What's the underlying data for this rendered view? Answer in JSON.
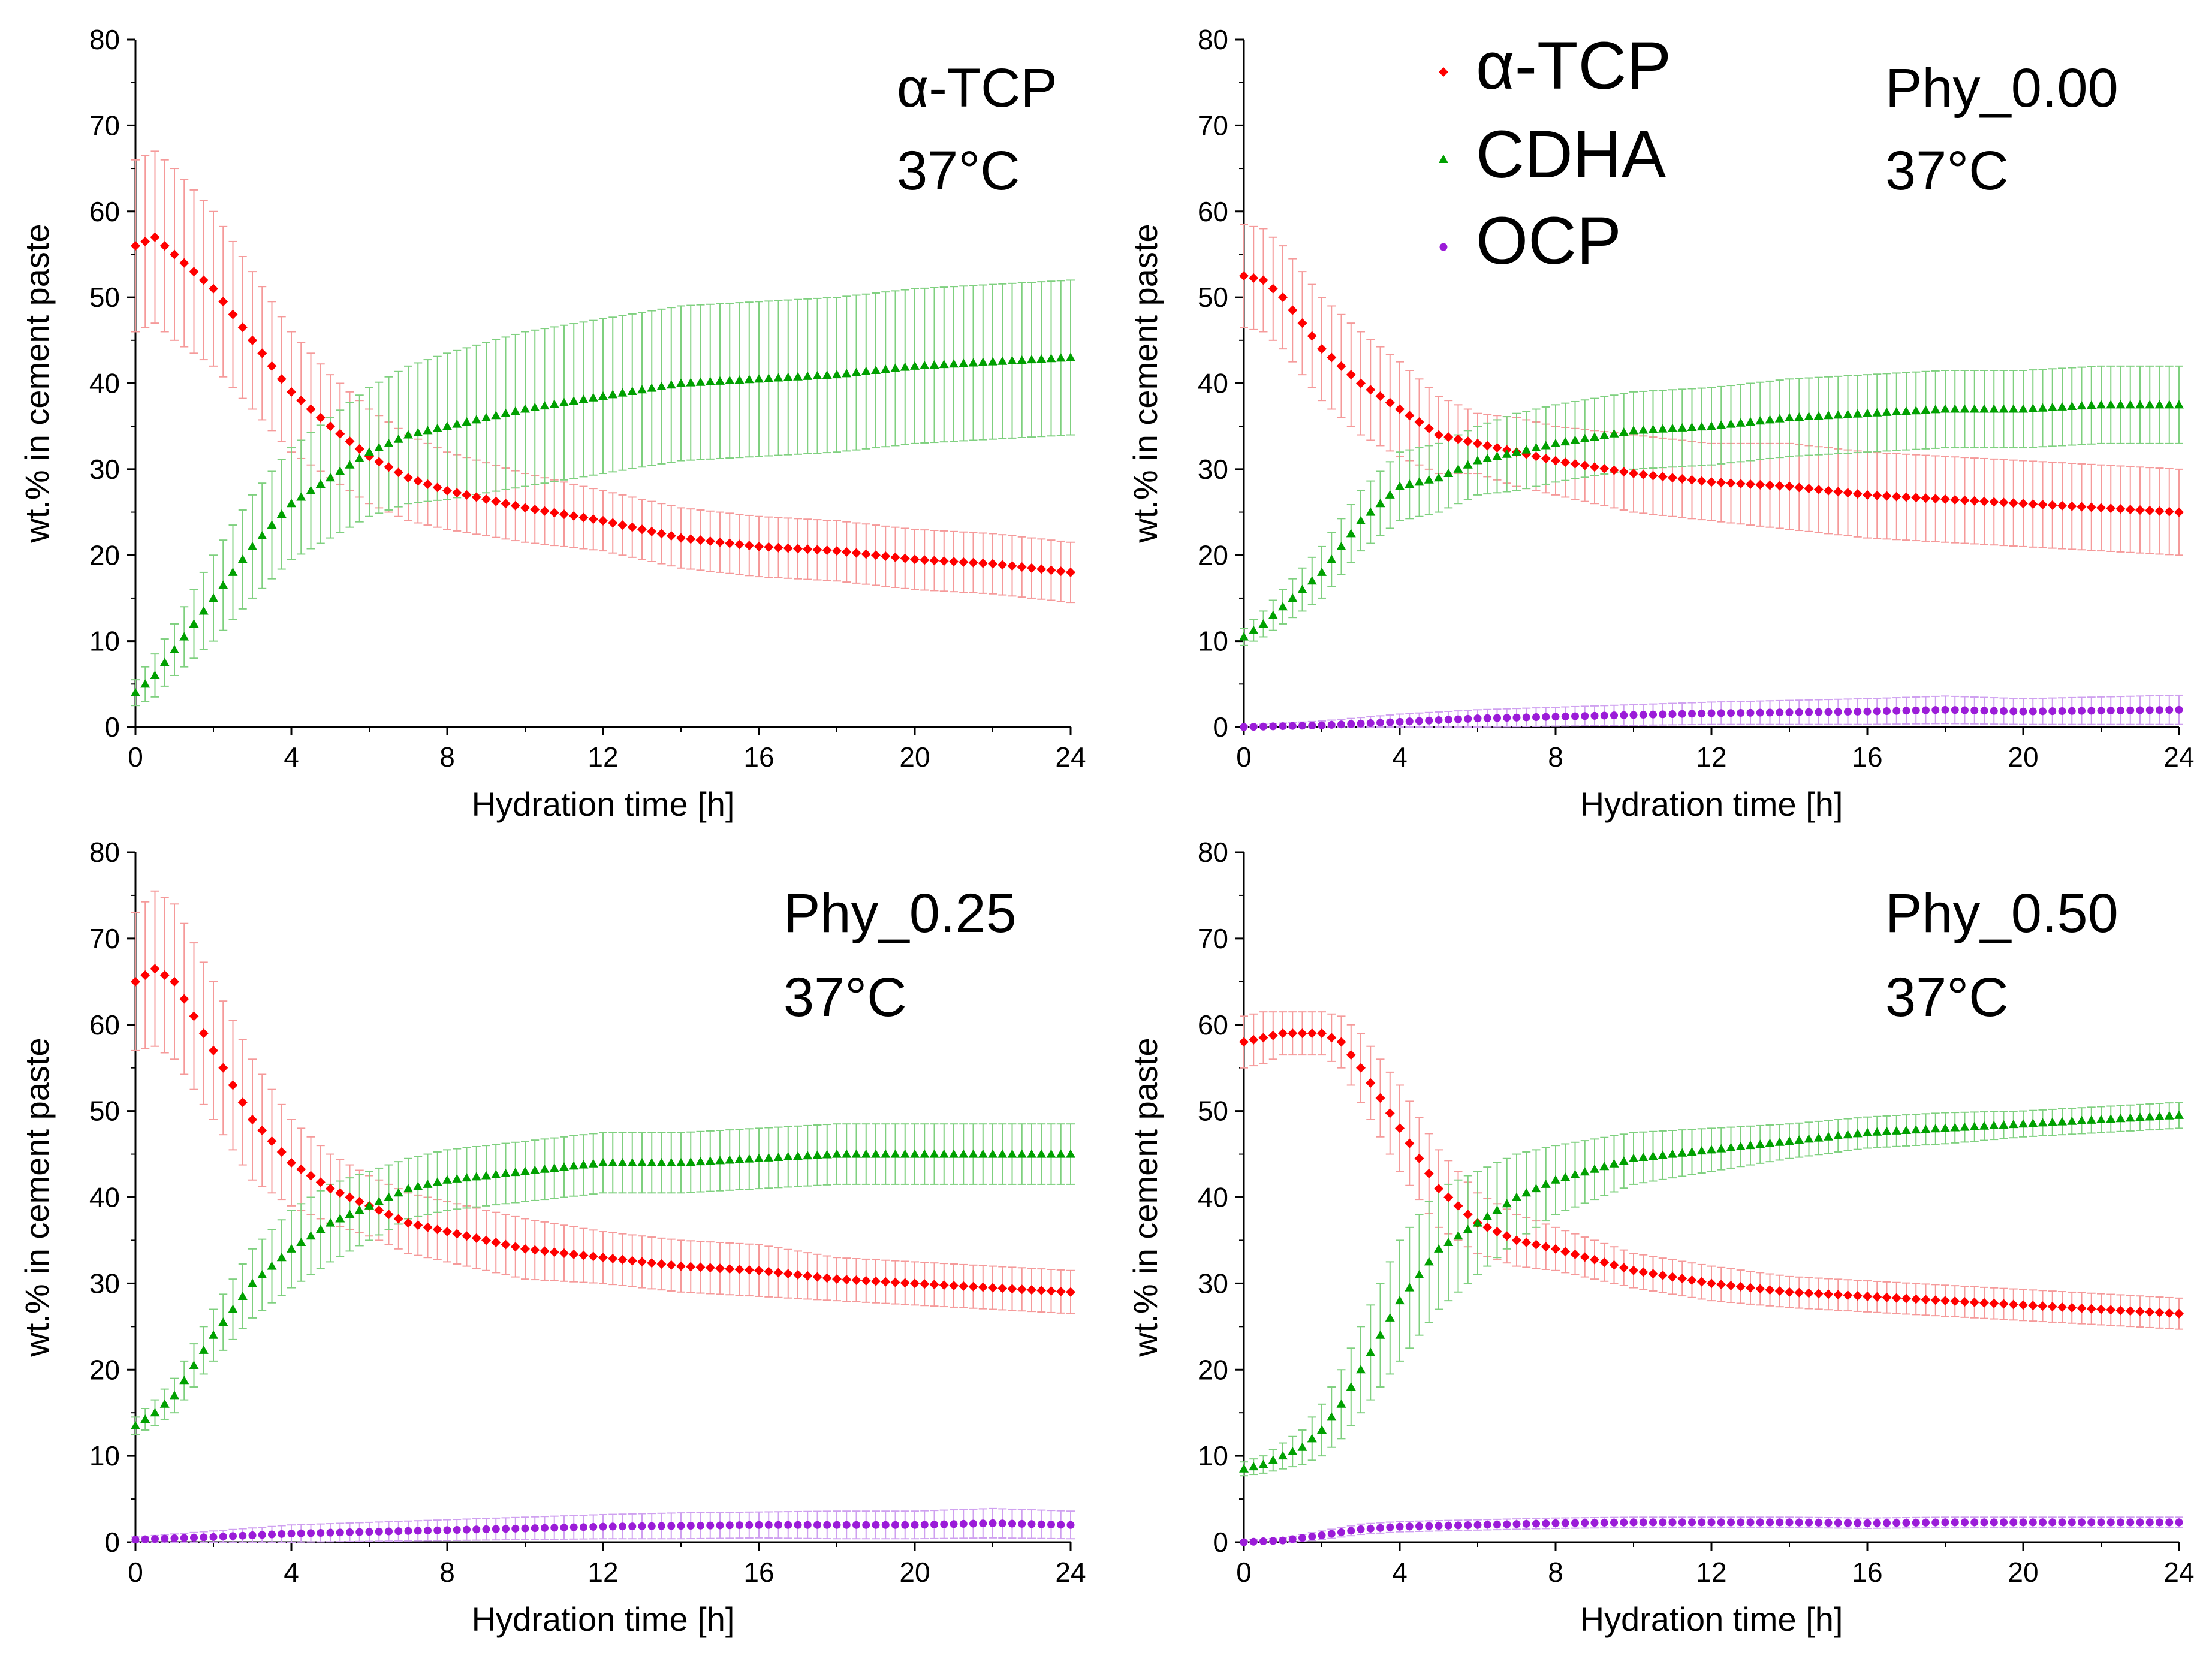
{
  "legend": [
    {
      "name": "α-TCP",
      "marker": "diamond",
      "color": "#ff0000"
    },
    {
      "name": "CDHA",
      "marker": "triangle",
      "color": "#00a000"
    },
    {
      "name": "OCP",
      "marker": "circle",
      "color": "#9b1cd8"
    }
  ],
  "colors": {
    "atcp": "#ff0000",
    "atcp_err": "#f59a9a",
    "cdha": "#00a000",
    "cdha_err": "#7fd07f",
    "ocp": "#9b1cd8",
    "ocp_err": "#cfa0f0"
  },
  "chart_data": [
    {
      "type": "scatter",
      "title": "α-TCP",
      "subtitle": "37°C",
      "xlabel": "Hydration time [h]",
      "ylabel": "wt.% in cement paste",
      "xlim": [
        0,
        24
      ],
      "ylim": [
        0,
        80
      ],
      "xticks": [
        0,
        4,
        8,
        12,
        16,
        20,
        24
      ],
      "yticks": [
        0,
        10,
        20,
        30,
        40,
        50,
        60,
        70,
        80
      ],
      "series": [
        {
          "name": "α-TCP",
          "x": [
            0,
            0.5,
            1,
            2,
            3,
            4,
            5,
            6,
            7,
            8,
            10,
            12,
            14,
            16,
            18,
            20,
            22,
            24
          ],
          "values": [
            56,
            57,
            55,
            51,
            45,
            39,
            35,
            31.5,
            29,
            27.5,
            25.5,
            24,
            22,
            21,
            20.5,
            19.5,
            19,
            18
          ],
          "error": [
            10,
            10,
            10,
            9,
            8,
            7,
            6,
            5.5,
            5,
            4.5,
            4,
            3.5,
            3.5,
            3.5,
            3.5,
            3.5,
            3.5,
            3.5
          ]
        },
        {
          "name": "CDHA",
          "x": [
            0,
            0.5,
            1,
            2,
            3,
            4,
            5,
            6,
            7,
            8,
            10,
            12,
            14,
            16,
            18,
            20,
            22,
            24
          ],
          "values": [
            4,
            6,
            9,
            15,
            21,
            26,
            29,
            32,
            34,
            35,
            37,
            38.5,
            40,
            40.5,
            41,
            42,
            42.5,
            43
          ],
          "error": [
            1.5,
            2.5,
            3,
            5,
            6,
            6.5,
            7,
            7.5,
            8,
            8.5,
            9,
            9,
            9,
            9,
            9,
            9,
            9,
            9
          ]
        }
      ]
    },
    {
      "type": "scatter",
      "title": "Phy_0.00",
      "subtitle": "37°C",
      "xlabel": "Hydration time [h]",
      "ylabel": "wt.% in cement paste",
      "xlim": [
        0,
        24
      ],
      "ylim": [
        0,
        80
      ],
      "xticks": [
        0,
        4,
        8,
        12,
        16,
        20,
        24
      ],
      "yticks": [
        0,
        10,
        20,
        30,
        40,
        50,
        60,
        70,
        80
      ],
      "series": [
        {
          "name": "α-TCP",
          "x": [
            0,
            0.5,
            1,
            2,
            3,
            4,
            5,
            6,
            7,
            8,
            10,
            12,
            14,
            16,
            18,
            20,
            22,
            24
          ],
          "values": [
            52.5,
            52,
            50,
            44,
            40,
            37,
            34,
            33,
            32,
            31,
            29.5,
            28.5,
            28,
            27,
            26.5,
            26,
            25.5,
            25
          ],
          "error": [
            6,
            6,
            6,
            6,
            6,
            5.5,
            4.5,
            3.5,
            4,
            4,
            4.5,
            4.5,
            5,
            5,
            5,
            5,
            5,
            5
          ]
        },
        {
          "name": "CDHA",
          "x": [
            0,
            0.5,
            1,
            2,
            3,
            4,
            5,
            6,
            7,
            8,
            10,
            12,
            14,
            16,
            18,
            20,
            22,
            24
          ],
          "values": [
            10.5,
            12,
            14,
            18,
            24,
            28,
            29,
            31,
            32,
            33,
            34.5,
            35,
            36,
            36.5,
            37,
            37,
            37.5,
            37.5
          ],
          "error": [
            1,
            1.5,
            2,
            3,
            3.5,
            4,
            4,
            4,
            4.5,
            4.5,
            4.5,
            4.5,
            4.5,
            4.5,
            4.5,
            4.5,
            4.5,
            4.5
          ]
        },
        {
          "name": "OCP",
          "x": [
            0,
            2,
            4,
            6,
            8,
            10,
            12,
            14,
            16,
            18,
            20,
            22,
            24
          ],
          "values": [
            0,
            0.2,
            0.6,
            1,
            1.2,
            1.4,
            1.6,
            1.7,
            1.8,
            2,
            1.8,
            1.9,
            2
          ],
          "error": [
            0.2,
            0.5,
            0.9,
            1,
            1.1,
            1.2,
            1.3,
            1.4,
            1.5,
            1.6,
            1.5,
            1.6,
            1.7
          ]
        }
      ]
    },
    {
      "type": "scatter",
      "title": "Phy_0.25",
      "subtitle": "37°C",
      "xlabel": "Hydration time [h]",
      "ylabel": "wt.% in cement paste",
      "xlim": [
        0,
        24
      ],
      "ylim": [
        0,
        80
      ],
      "xticks": [
        0,
        4,
        8,
        12,
        16,
        20,
        24
      ],
      "yticks": [
        0,
        10,
        20,
        30,
        40,
        50,
        60,
        70,
        80
      ],
      "series": [
        {
          "name": "α-TCP",
          "x": [
            0,
            0.5,
            1,
            2,
            3,
            4,
            5,
            6,
            7,
            8,
            10,
            12,
            14,
            16,
            18,
            20,
            22,
            24
          ],
          "values": [
            65,
            66.5,
            65,
            57,
            49,
            44,
            41,
            39,
            37,
            36,
            34,
            33,
            32,
            31.5,
            30.5,
            30,
            29.5,
            29
          ],
          "error": [
            8,
            9,
            9,
            8,
            7,
            5,
            4,
            3.5,
            3.5,
            3.5,
            3.5,
            3,
            3,
            3,
            2.5,
            2.5,
            2.5,
            2.5
          ]
        },
        {
          "name": "CDHA",
          "x": [
            0,
            0.5,
            1,
            2,
            3,
            4,
            5,
            6,
            7,
            8,
            10,
            12,
            14,
            16,
            18,
            20,
            22,
            24
          ],
          "values": [
            13.5,
            15,
            17,
            24,
            30,
            34,
            37,
            39,
            41,
            42,
            43,
            44,
            44,
            44.5,
            45,
            45,
            45,
            45
          ],
          "error": [
            1,
            1.5,
            2,
            3,
            4,
            4.5,
            4.5,
            4,
            3.5,
            3.5,
            3.5,
            3.5,
            3.5,
            3.5,
            3.5,
            3.5,
            3.5,
            3.5
          ]
        },
        {
          "name": "OCP",
          "x": [
            0,
            2,
            4,
            6,
            8,
            10,
            12,
            14,
            16,
            18,
            20,
            22,
            24
          ],
          "values": [
            0.3,
            0.6,
            1,
            1.2,
            1.4,
            1.6,
            1.8,
            1.9,
            2,
            2,
            2,
            2.2,
            2
          ],
          "error": [
            0.3,
            0.7,
            1,
            1.1,
            1.2,
            1.3,
            1.4,
            1.5,
            1.5,
            1.6,
            1.6,
            1.7,
            1.6
          ]
        }
      ]
    },
    {
      "type": "scatter",
      "title": "Phy_0.50",
      "subtitle": "37°C",
      "xlabel": "Hydration time [h]",
      "ylabel": "wt.% in cement paste",
      "xlim": [
        0,
        24
      ],
      "ylim": [
        0,
        80
      ],
      "xticks": [
        0,
        4,
        8,
        12,
        16,
        20,
        24
      ],
      "yticks": [
        0,
        10,
        20,
        30,
        40,
        50,
        60,
        70,
        80
      ],
      "series": [
        {
          "name": "α-TCP",
          "x": [
            0,
            0.5,
            1,
            1.5,
            2,
            2.5,
            3,
            4,
            5,
            6,
            7,
            8,
            10,
            12,
            14,
            16,
            18,
            20,
            22,
            24
          ],
          "values": [
            58,
            58.5,
            59,
            59,
            59,
            58,
            55,
            48,
            41,
            37,
            35,
            34,
            31.5,
            30,
            29,
            28.5,
            28,
            27.5,
            27,
            26.5
          ],
          "error": [
            3,
            3,
            2.5,
            2.5,
            2.5,
            3,
            4,
            5,
            4.5,
            3.5,
            3,
            2.5,
            2,
            2,
            1.8,
            1.8,
            1.8,
            1.8,
            1.8,
            1.8
          ]
        },
        {
          "name": "CDHA",
          "x": [
            0,
            0.5,
            1,
            1.5,
            2,
            2.5,
            3,
            4,
            5,
            6,
            7,
            8,
            10,
            12,
            14,
            16,
            18,
            20,
            22,
            24
          ],
          "values": [
            8.5,
            9,
            10,
            11,
            13,
            16,
            20,
            28,
            34,
            37,
            40,
            42,
            44.5,
            45.5,
            46.5,
            47.5,
            48,
            48.5,
            49,
            49.5
          ],
          "error": [
            0.8,
            1,
            1.5,
            2,
            3,
            4,
            5,
            7,
            7,
            6,
            5,
            4,
            3,
            2.5,
            2,
            1.8,
            1.8,
            1.5,
            1.5,
            1.5
          ]
        },
        {
          "name": "OCP",
          "x": [
            0,
            1,
            2,
            3,
            4,
            6,
            8,
            10,
            12,
            14,
            16,
            18,
            20,
            22,
            24
          ],
          "values": [
            0,
            0.2,
            0.8,
            1.5,
            1.8,
            2,
            2.2,
            2.3,
            2.3,
            2.3,
            2.2,
            2.3,
            2.3,
            2.3,
            2.3
          ],
          "error": [
            0.2,
            0.3,
            0.5,
            0.6,
            0.6,
            0.6,
            0.6,
            0.6,
            0.6,
            0.6,
            0.6,
            0.6,
            0.6,
            0.6,
            0.6
          ]
        }
      ]
    }
  ]
}
